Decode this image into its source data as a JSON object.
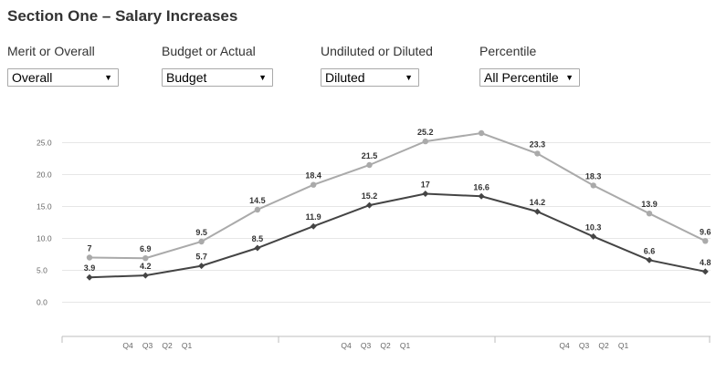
{
  "header": {
    "title": "Section One – Salary Increases"
  },
  "filters": [
    {
      "label": "Merit or Overall",
      "value": "Overall"
    },
    {
      "label": "Budget or Actual",
      "value": "Budget"
    },
    {
      "label": "Undiluted or Diluted",
      "value": "Diluted"
    },
    {
      "label": "Percentile",
      "value": "All Percentile"
    }
  ],
  "icons": {
    "dropdown": "caret-down-icon"
  },
  "chart_data": {
    "type": "line",
    "title": "",
    "xlabel": "",
    "ylabel": "",
    "ylim": [
      0,
      25
    ],
    "yticks": [
      "25.0",
      "20.0",
      "15.0",
      "10.0",
      "5.0",
      "0.0"
    ],
    "x_tick_labels": [
      "Q4",
      "Q3",
      "Q2",
      "Q1",
      "Q4",
      "Q3",
      "Q2",
      "Q1",
      "Q4",
      "Q3",
      "Q2",
      "Q1"
    ],
    "grid": true,
    "legend": "none",
    "series": [
      {
        "color": "#aaaaaa",
        "values": [
          7,
          6.9,
          9.5,
          14.5,
          18.4,
          21.5,
          25.2,
          26.5,
          23.3,
          18.3,
          13.9,
          9.6
        ]
      },
      {
        "color": "#444444",
        "values": [
          3.9,
          4.2,
          5.7,
          8.5,
          11.9,
          15.2,
          17,
          16.6,
          14.2,
          10.3,
          6.6,
          4.8
        ]
      }
    ]
  }
}
